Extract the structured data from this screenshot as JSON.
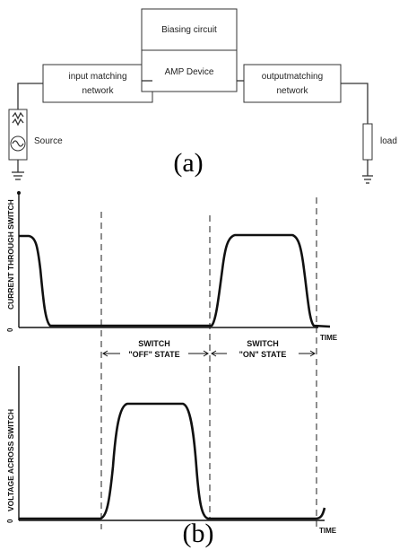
{
  "panel_a": {
    "label": "(a)",
    "blocks": {
      "biasing": "Biasing circuit",
      "input_line1": "input matching",
      "input_line2": "network",
      "amp": "AMP Device",
      "output_line1": "outputmatching",
      "output_line2": "network"
    },
    "source_label": "Source",
    "load_label": "load"
  },
  "panel_b": {
    "label": "(b)",
    "top_ylabel": "CURRENT THROUGH SWITCH",
    "bottom_ylabel": "VOLTAGE ACROSS SWITCH",
    "origin_label": "0",
    "time_label": "TIME",
    "off_state_line1": "SWITCH",
    "off_state_line2": "\"OFF\" STATE",
    "on_state_line1": "SWITCH",
    "on_state_line2": "\"ON\" STATE"
  },
  "colors": {
    "ink": "#111111",
    "block_stroke": "#333333",
    "background": "#ffffff"
  }
}
